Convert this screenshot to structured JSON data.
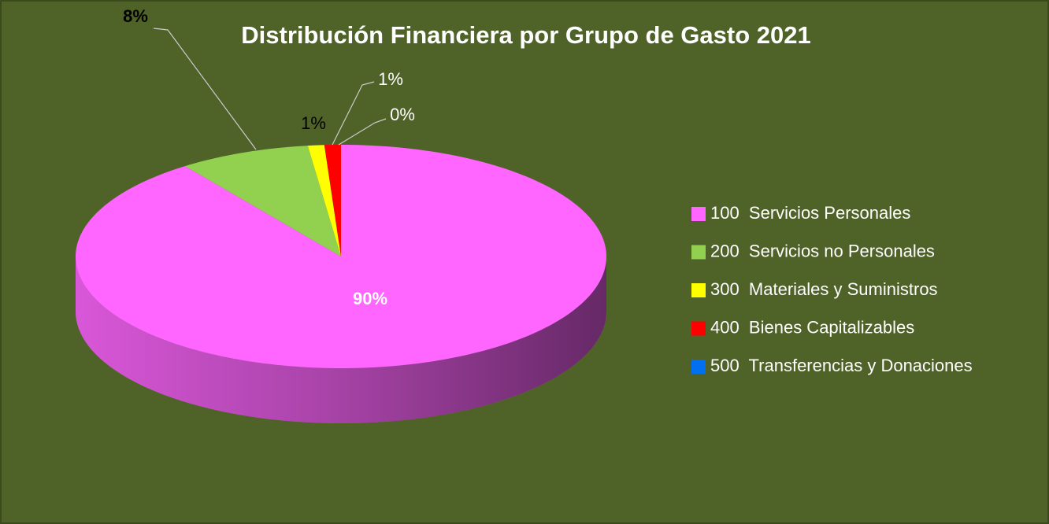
{
  "chart_data": {
    "type": "pie",
    "title": "Distribución Financiera por Grupo de Gasto 2021",
    "categories": [
      "100  Servicios Personales",
      "200  Servicios no Personales",
      "300  Materiales y Suministros",
      "400  Bienes Capitalizables",
      "500  Transferencias y Donaciones"
    ],
    "values": [
      90,
      8,
      1,
      1,
      0
    ],
    "value_labels": [
      "90%",
      "8%",
      "1%",
      "1%",
      "0%"
    ],
    "colors": [
      "#ff66ff",
      "#92d050",
      "#ffff00",
      "#ff0000",
      "#0070f0"
    ],
    "legend": "right"
  }
}
